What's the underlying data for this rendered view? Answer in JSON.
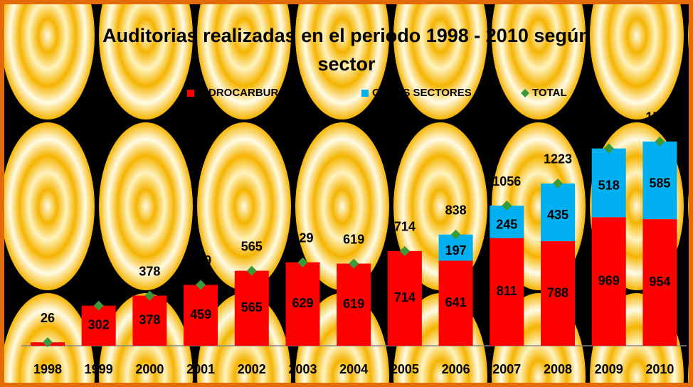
{
  "chart_data": {
    "type": "stacked_bar_total",
    "title": "Auditorias realizadas en el periodo 1998 - 2010 según sector",
    "categories": [
      "1998",
      "1999",
      "2000",
      "2001",
      "2002",
      "2003",
      "2004",
      "2005",
      "2006",
      "2007",
      "2008",
      "2009",
      "2010"
    ],
    "series": [
      {
        "name": "HIDROCARBUROS",
        "color": "#ff0000",
        "values": [
          26,
          302,
          378,
          459,
          565,
          629,
          619,
          714,
          641,
          811,
          788,
          969,
          954
        ]
      },
      {
        "name": "OTROS SECTORES",
        "color": "#00b0f0",
        "values": [
          null,
          null,
          null,
          null,
          null,
          null,
          null,
          null,
          197,
          245,
          435,
          518,
          585
        ]
      },
      {
        "name": "TOTAL",
        "color": "#3a9a3a",
        "values": [
          26,
          302,
          378,
          459,
          565,
          629,
          619,
          714,
          838,
          1056,
          1223,
          1487,
          1539
        ]
      }
    ],
    "ylim": [
      0,
      1700
    ]
  }
}
